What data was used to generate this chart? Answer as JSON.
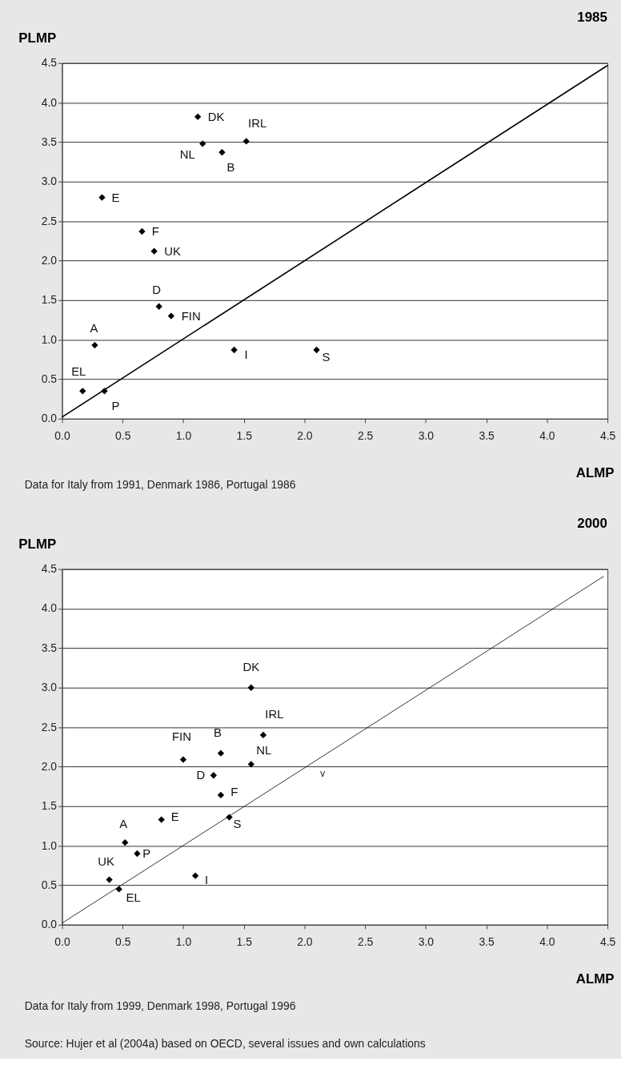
{
  "chart_data": [
    {
      "type": "scatter",
      "title": "1985",
      "xlabel": "ALMP",
      "ylabel": "PLMP",
      "grid": "y",
      "xlim": [
        0,
        4.5
      ],
      "ylim": [
        0,
        4.5
      ],
      "xticks": [
        {
          "value": 0,
          "label": "0.0"
        },
        0.5,
        {
          "value": 1,
          "label": "1.0"
        },
        1.5,
        {
          "value": 2,
          "label": "2.0"
        },
        2.5,
        {
          "value": 3,
          "label": "3.0"
        },
        3.5,
        {
          "value": 4,
          "label": "4.0"
        },
        4.5
      ],
      "yticks": [
        {
          "value": 0,
          "label": "0.0"
        },
        0.5,
        {
          "value": 1,
          "label": "1.0"
        },
        1.5,
        {
          "value": 2,
          "label": "2.0"
        },
        2.5,
        {
          "value": 3,
          "label": "3.0"
        },
        3.5,
        {
          "value": 4,
          "label": "4.0"
        },
        4.5
      ],
      "series": [
        {
          "type": "scatter",
          "marker": "diamond",
          "color": "#000000",
          "x": [
            1.12,
            1.16,
            1.32,
            1.52,
            0.33,
            0.66,
            0.76,
            0.8,
            0.9,
            0.27,
            1.42,
            2.1,
            0.17,
            0.35
          ],
          "values": [
            3.82,
            3.48,
            3.37,
            3.51,
            2.8,
            2.37,
            2.12,
            1.42,
            1.3,
            0.93,
            0.87,
            0.87,
            0.35,
            0.35
          ]
        },
        {
          "type": "line",
          "color": "#000000",
          "x": [
            0,
            4.5
          ],
          "values": [
            0.02,
            4.47
          ]
        }
      ],
      "annotations": [
        {
          "text": "DK",
          "x": 1.12,
          "y": 3.82
        },
        {
          "text": "NL",
          "x": 1.16,
          "y": 3.48
        },
        {
          "text": "B",
          "x": 1.32,
          "y": 3.37
        },
        {
          "text": "IRL",
          "x": 1.52,
          "y": 3.51
        },
        {
          "text": "E",
          "x": 0.33,
          "y": 2.8
        },
        {
          "text": "F",
          "x": 0.66,
          "y": 2.37
        },
        {
          "text": "UK",
          "x": 0.76,
          "y": 2.12
        },
        {
          "text": "D",
          "x": 0.8,
          "y": 1.42
        },
        {
          "text": "FIN",
          "x": 0.9,
          "y": 1.3
        },
        {
          "text": "A",
          "x": 0.27,
          "y": 0.93
        },
        {
          "text": "I",
          "x": 1.42,
          "y": 0.87
        },
        {
          "text": "S",
          "x": 2.1,
          "y": 0.87
        },
        {
          "text": "EL",
          "x": 0.17,
          "y": 0.35
        },
        {
          "text": "P",
          "x": 0.35,
          "y": 0.35
        },
        "Data for Italy from 1991, Denmark 1986, Portugal 1986"
      ]
    },
    {
      "type": "scatter",
      "title": "2000",
      "xlabel": "ALMP",
      "ylabel": "PLMP",
      "grid": "y",
      "xlim": [
        0,
        4.5
      ],
      "ylim": [
        0,
        4.5
      ],
      "xticks": [
        {
          "value": 0,
          "label": "0.0"
        },
        0.5,
        {
          "value": 1,
          "label": "1.0"
        },
        1.5,
        {
          "value": 2,
          "label": "2.0"
        },
        2.5,
        {
          "value": 3,
          "label": "3.0"
        },
        3.5,
        {
          "value": 4,
          "label": "4.0"
        },
        4.5
      ],
      "yticks": [
        {
          "value": 0,
          "label": "0.0"
        },
        0.5,
        {
          "value": 1,
          "label": "1.0"
        },
        1.5,
        {
          "value": 2,
          "label": "2.0"
        },
        2.5,
        {
          "value": 3,
          "label": "3.0"
        },
        3.5,
        {
          "value": 4,
          "label": "4.0"
        },
        4.5
      ],
      "series": [
        {
          "type": "scatter",
          "marker": "diamond",
          "color": "#000000",
          "x": [
            1.56,
            1.66,
            1.31,
            1.56,
            1.0,
            1.25,
            1.31,
            0.82,
            1.38,
            0.52,
            0.62,
            0.39,
            0.47,
            1.1
          ],
          "values": [
            3.0,
            2.4,
            2.17,
            2.03,
            2.09,
            1.89,
            1.64,
            1.33,
            1.36,
            1.04,
            0.9,
            0.57,
            0.45,
            0.62
          ]
        },
        {
          "type": "line",
          "color": "#000000",
          "x": [
            0,
            4.47
          ],
          "values": [
            0.02,
            4.41
          ]
        }
      ],
      "annotations": [
        {
          "text": "DK",
          "x": 1.56,
          "y": 3.0
        },
        {
          "text": "IRL",
          "x": 1.66,
          "y": 2.4
        },
        {
          "text": "B",
          "x": 1.31,
          "y": 2.17
        },
        {
          "text": "NL",
          "x": 1.56,
          "y": 2.03
        },
        {
          "text": "FIN",
          "x": 1.0,
          "y": 2.09
        },
        {
          "text": "D",
          "x": 1.25,
          "y": 1.89
        },
        {
          "text": "F",
          "x": 1.31,
          "y": 1.64
        },
        {
          "text": "E",
          "x": 0.82,
          "y": 1.33
        },
        {
          "text": "S",
          "x": 1.38,
          "y": 1.36
        },
        {
          "text": "A",
          "x": 0.52,
          "y": 1.04
        },
        {
          "text": "P",
          "x": 0.62,
          "y": 0.9
        },
        {
          "text": "UK",
          "x": 0.39,
          "y": 0.57
        },
        {
          "text": "EL",
          "x": 0.47,
          "y": 0.45
        },
        {
          "text": "I",
          "x": 1.1,
          "y": 0.62
        },
        "v",
        "Data for Italy from 1999, Denmark 1998, Portugal 1996",
        "Source: Hujer et al (2004a) based on OECD, several issues and own calculations"
      ]
    }
  ]
}
